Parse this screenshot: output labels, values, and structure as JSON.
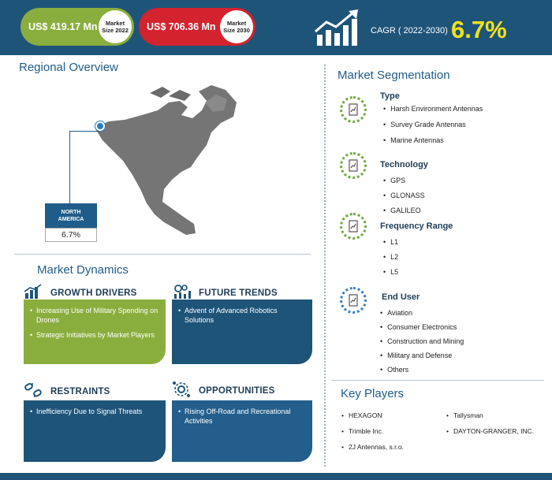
{
  "header": {
    "market_size_2022": {
      "value": "US$ 419.17 Mn",
      "label_line1": "Market",
      "label_line2": "Size 2022"
    },
    "market_size_2030": {
      "value": "US$ 706.36 Mn",
      "label_line1": "Market",
      "label_line2": "Size 2030"
    },
    "cagr_label": "CAGR ( 2022-2030)",
    "cagr_value": "6.7%"
  },
  "regional": {
    "title": "Regional Overview",
    "region_line1": "NORTH",
    "region_line2": "AMERICA",
    "region_value": "6.7%"
  },
  "dynamics": {
    "title": "Market Dynamics",
    "growth_drivers": {
      "title": "GROWTH DRIVERS",
      "items": [
        "Increasing Use of Military Spending on Drones",
        "Strategic Initiatives by Market Players"
      ]
    },
    "future_trends": {
      "title": "FUTURE TRENDS",
      "items": [
        "Advent of Advanced Robotics Solutions"
      ]
    },
    "restraints": {
      "title": "RESTRAINTS",
      "items": [
        "Inefficiency Due to Signal Threats"
      ]
    },
    "opportunities": {
      "title": "OPPORTUNITIES",
      "items": [
        "Rising Off-Road and Recreational Activities"
      ]
    }
  },
  "segmentation": {
    "title": "Market Segmentation",
    "type": {
      "title": "Type",
      "items": [
        "Harsh Environment Antennas",
        "Survey Grade Antennas",
        "Marine Antennas"
      ]
    },
    "technology": {
      "title": "Technology",
      "items": [
        "GPS",
        "GLONASS",
        "GALILEO"
      ]
    },
    "frequency_range": {
      "title": "Frequency Range",
      "items": [
        "L1",
        "L2",
        "L5"
      ]
    },
    "end_user": {
      "title": "End User",
      "items": [
        "Aviation",
        "Consumer Electronics",
        "Construction and Mining",
        "Military and Defense",
        "Others"
      ]
    }
  },
  "key_players": {
    "title": "Key Players",
    "items": [
      "HEXAGON",
      "Tallysman",
      "Trimble Inc.",
      "DAYTON-GRANGER, INC.",
      "2J Antennas, s.r.o."
    ]
  },
  "icons": {
    "cagr": "growth-chart-icon",
    "growth_drivers": "bar-chart-icon",
    "future_trends": "trend-gears-icon",
    "restraints": "broken-link-icon",
    "opportunities": "gear-network-icon",
    "segmentation": "document-chart-icon",
    "map_marker": "location-marker-icon"
  },
  "colors": {
    "navy": "#1f5479",
    "green": "#8aae3e",
    "red": "#d2232f",
    "accent_yellow": "#f0e31b",
    "title_blue": "#1f5c8a"
  }
}
